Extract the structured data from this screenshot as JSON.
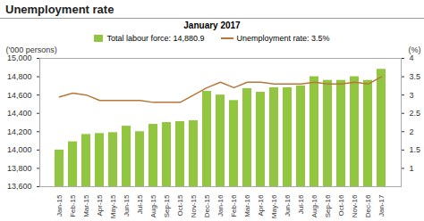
{
  "chart_data": {
    "type": "bar",
    "title": "Unemployment rate",
    "subtitle": "January 2017",
    "categories": [
      "Jan-15",
      "Feb-15",
      "Mar-15",
      "Apr-15",
      "May-15",
      "Jun-15",
      "Jul-15",
      "Aug-15",
      "Sep-15",
      "Oct-15",
      "Nov-15",
      "Dec-15",
      "Jan-16",
      "Feb-16",
      "Mar-16",
      "Apr-16",
      "May-16",
      "Jun-16",
      "Jul-16",
      "Aug-16",
      "Sep-16",
      "Oct-16",
      "Nov-16",
      "Dec-16",
      "Jan-17"
    ],
    "series": [
      {
        "name": "Total labour force: 14,880.9",
        "type": "bar",
        "color": "#92c540",
        "values": [
          14000,
          14090,
          14170,
          14180,
          14190,
          14260,
          14200,
          14280,
          14300,
          14310,
          14320,
          14640,
          14600,
          14540,
          14670,
          14630,
          14680,
          14680,
          14700,
          14800,
          14760,
          14760,
          14800,
          14760,
          14880.9
        ]
      },
      {
        "name": "Unemployment rate: 3.5%",
        "type": "line",
        "axis": "y2",
        "color": "#b8773a",
        "values": [
          2.95,
          3.05,
          3.0,
          2.85,
          2.85,
          2.85,
          2.85,
          2.8,
          2.8,
          2.8,
          3.0,
          3.2,
          3.35,
          3.2,
          3.35,
          3.35,
          3.3,
          3.3,
          3.3,
          3.35,
          3.3,
          3.3,
          3.35,
          3.3,
          3.5
        ]
      }
    ],
    "ylabel": "('000 persons)",
    "y2label": "(%)",
    "ylim": [
      13600,
      15000
    ],
    "yticks": [
      {
        "value": 13600,
        "label": "13,600"
      },
      {
        "value": 13800,
        "label": "13,800"
      },
      {
        "value": 14000,
        "label": "14,000"
      },
      {
        "value": 14200,
        "label": "14,200"
      },
      {
        "value": 14400,
        "label": "14,400"
      },
      {
        "value": 14600,
        "label": "14,600"
      },
      {
        "value": 14800,
        "label": "14,800"
      },
      {
        "value": 15000,
        "label": "15,000"
      }
    ],
    "y2lim": [
      0.5,
      4
    ],
    "y2ticks": [
      1,
      1.5,
      2,
      2.5,
      3,
      3.5,
      4
    ],
    "grid": false
  }
}
